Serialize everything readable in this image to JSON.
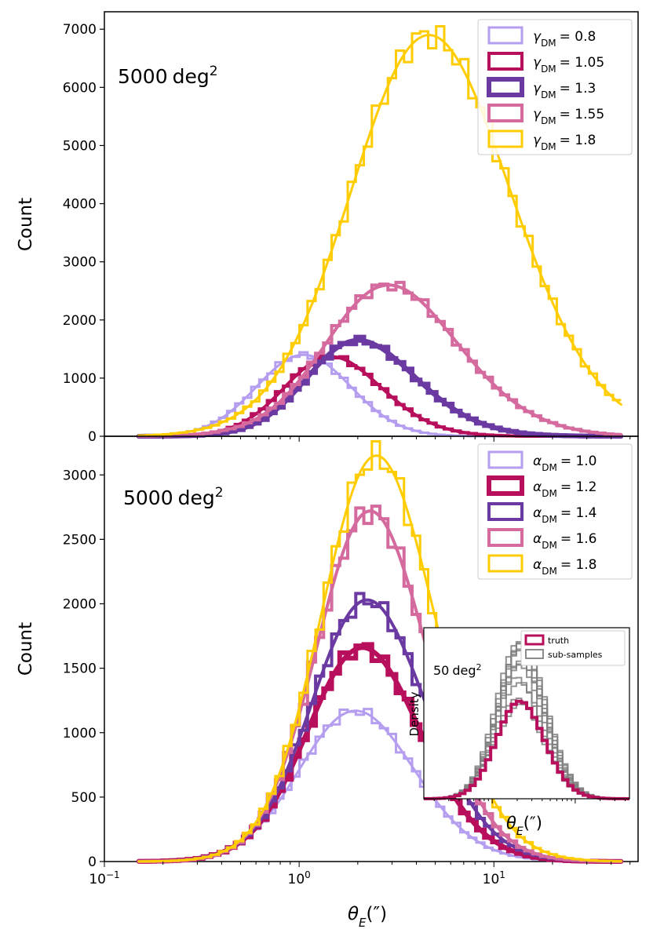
{
  "chart_data": [
    {
      "panel": "top",
      "type": "line",
      "title": "",
      "annotation": {
        "base": "5000",
        "unit": "deg",
        "exp": "2"
      },
      "xscale": "log",
      "xlim": [
        0.1,
        55
      ],
      "ylim": [
        0,
        7300
      ],
      "ylabel": "Count",
      "xlabel": "",
      "yticks": [
        "0",
        "1000",
        "2000",
        "3000",
        "4000",
        "5000",
        "6000",
        "7000"
      ],
      "legend_position": "top-right",
      "param_symbol": "γ",
      "series": [
        {
          "name": "γDM = 0.8",
          "legend_sym": "γ",
          "legend_sub": "DM",
          "legend_val": "= 0.8",
          "color": "#b59df0",
          "width": 3,
          "peak": 1400,
          "center": 0.82,
          "sigma": 0.27,
          "skew": 1.0
        },
        {
          "name": "γDM = 1.05",
          "legend_sym": "γ",
          "legend_sub": "DM",
          "legend_val": "= 1.05",
          "color": "#b80f5c",
          "width": 4,
          "peak": 1370,
          "center": 1.0,
          "sigma": 0.32,
          "skew": 1.8
        },
        {
          "name": "γDM = 1.3",
          "legend_sym": "γ",
          "legend_sub": "DM",
          "legend_val": "= 1.3",
          "color": "#6a3aa2",
          "width": 6,
          "peak": 1650,
          "center": 1.27,
          "sigma": 0.38,
          "skew": 2.2
        },
        {
          "name": "γDM = 1.55",
          "legend_sym": "γ",
          "legend_sub": "DM",
          "legend_val": "= 1.55",
          "color": "#d46a9e",
          "width": 4,
          "peak": 2600,
          "center": 1.68,
          "sigma": 0.45,
          "skew": 2.0
        },
        {
          "name": "γDM = 1.8",
          "legend_sym": "γ",
          "legend_sub": "DM",
          "legend_val": "= 1.8",
          "color": "#ffcc00",
          "width": 3,
          "peak": 6900,
          "center": 2.65,
          "sigma": 0.5,
          "skew": 1.5
        }
      ]
    },
    {
      "panel": "bottom",
      "type": "line",
      "title": "",
      "annotation": {
        "base": "5000",
        "unit": "deg",
        "exp": "2"
      },
      "xscale": "log",
      "xlim": [
        0.1,
        55
      ],
      "ylim": [
        0,
        3300
      ],
      "ylabel": "Count",
      "xlabel": "θE(″)",
      "xlabel_sym": "θ",
      "xlabel_sub": "E",
      "xlabel_unit": "(″)",
      "xticks": [
        {
          "base": "10",
          "exp": "−1"
        },
        {
          "base": "10",
          "exp": "0"
        },
        {
          "base": "10",
          "exp": "1"
        }
      ],
      "yticks": [
        "0",
        "500",
        "1000",
        "1500",
        "2000",
        "2500",
        "3000"
      ],
      "legend_position": "top-right",
      "series": [
        {
          "name": "αDM = 1.0",
          "legend_sym": "α",
          "legend_sub": "DM",
          "legend_val": "= 1.0",
          "color": "#b59df0",
          "width": 3,
          "peak": 1170,
          "center": 1.3,
          "sigma": 0.36,
          "skew": 1.5
        },
        {
          "name": "αDM = 1.2",
          "legend_sym": "α",
          "legend_sub": "DM",
          "legend_val": "= 1.2",
          "color": "#b80f5c",
          "width": 6,
          "peak": 1660,
          "center": 1.4,
          "sigma": 0.36,
          "skew": 1.6
        },
        {
          "name": "αDM = 1.4",
          "legend_sym": "α",
          "legend_sub": "DM",
          "legend_val": "= 1.4",
          "color": "#6a3aa2",
          "width": 4,
          "peak": 2030,
          "center": 1.48,
          "sigma": 0.36,
          "skew": 1.6
        },
        {
          "name": "αDM = 1.6",
          "legend_sym": "α",
          "legend_sub": "DM",
          "legend_val": "= 1.6",
          "color": "#d46a9e",
          "width": 4,
          "peak": 2720,
          "center": 1.55,
          "sigma": 0.35,
          "skew": 1.6
        },
        {
          "name": "αDM = 1.8",
          "legend_sym": "α",
          "legend_sub": "DM",
          "legend_val": "= 1.8",
          "color": "#ffcc00",
          "width": 3,
          "peak": 3150,
          "center": 1.65,
          "sigma": 0.36,
          "skew": 1.6
        }
      ]
    },
    {
      "panel": "inset",
      "type": "line",
      "annotation": {
        "base": "50",
        "unit": "deg",
        "exp": "2"
      },
      "xscale": "log",
      "ylabel": "Density",
      "xlabel": "θE(″)",
      "xlabel_sym": "θ",
      "xlabel_sub": "E",
      "xlabel_unit": "(″)",
      "legend_position": "top-right",
      "series": [
        {
          "name": "truth",
          "color": "#b80f5c",
          "width": 4,
          "peak": 0.62,
          "center": 1.45,
          "sigma": 0.35,
          "skew": 1.5
        },
        {
          "name": "sub-samples",
          "color": "#808080",
          "width": 2,
          "count": 12,
          "peak": 1.0,
          "center": 1.45,
          "sigma": 0.35
        }
      ]
    }
  ]
}
